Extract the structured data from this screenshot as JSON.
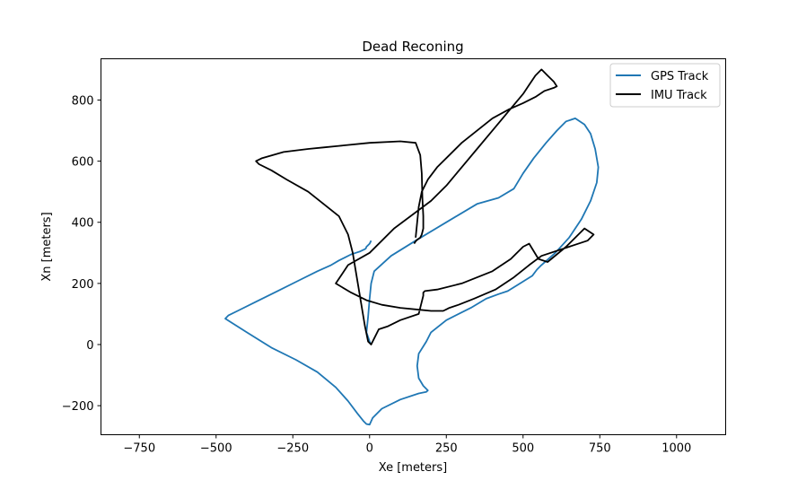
{
  "chart_data": {
    "type": "line",
    "title": "Dead Reconing",
    "xlabel": "Xe [meters]",
    "ylabel": "Xn [meters]",
    "xlim": [
      -875,
      1160
    ],
    "ylim": [
      -295,
      935
    ],
    "xticks": [
      -750,
      -500,
      -250,
      0,
      250,
      500,
      750,
      1000
    ],
    "xtick_labels": [
      "−750",
      "−500",
      "−250",
      "0",
      "250",
      "500",
      "750",
      "1000"
    ],
    "yticks": [
      -200,
      0,
      200,
      400,
      600,
      800
    ],
    "ytick_labels": [
      "−200",
      "0",
      "200",
      "400",
      "600",
      "800"
    ],
    "grid": false,
    "legend_position": "top-right",
    "series": [
      {
        "name": "GPS Track",
        "color": "#1f77b4",
        "x": [
          0,
          -10,
          -20,
          -40,
          -70,
          -115,
          -170,
          -240,
          -310,
          -390,
          -470,
          -465,
          -450,
          -420,
          -370,
          -310,
          -250,
          -190,
          -140,
          -100,
          -80,
          -60,
          -40,
          -28,
          -18,
          -12,
          -10,
          -5,
          0,
          -3,
          -8,
          -5,
          60,
          150,
          260,
          360,
          455,
          550,
          610,
          560,
          580,
          640,
          700,
          745,
          740,
          690,
          600,
          545,
          450,
          350,
          250,
          130,
          90,
          60,
          0,
          -20,
          -20,
          -12,
          -30,
          -50,
          -70,
          -95,
          -130,
          -220,
          -310,
          -400,
          -470,
          -400,
          -320,
          -240,
          -180,
          -150,
          -120,
          -90,
          -75,
          -65,
          -55,
          -40,
          -20,
          -5,
          0,
          5,
          10,
          20,
          40,
          80,
          140,
          175,
          190,
          170,
          150,
          170,
          200,
          260,
          350,
          420,
          460,
          500,
          545,
          560,
          620,
          700,
          745,
          730,
          650,
          580,
          570,
          590,
          650,
          720
        ],
        "y": [
          -265,
          -255,
          -235,
          -195,
          -155,
          -110,
          -70,
          -30,
          10,
          50,
          85,
          90,
          95,
          110,
          140,
          170,
          195,
          215,
          240,
          260,
          270,
          285,
          295,
          300,
          305,
          310,
          315,
          320,
          325,
          330,
          340,
          345,
          360,
          390,
          440,
          520,
          600,
          690,
          740,
          790,
          790,
          730,
          560,
          240,
          230,
          260,
          330,
          290,
          200,
          140,
          90,
          70,
          60,
          50,
          -20,
          -200,
          -230,
          -245,
          -240,
          -230,
          -225,
          -220,
          -215,
          -205,
          -185,
          -160,
          -145,
          -150,
          -158,
          -165,
          -168,
          -162,
          -150,
          -140,
          -128,
          -110,
          -90,
          -60,
          -30,
          -10,
          0,
          10,
          30,
          55,
          80,
          60,
          20,
          0,
          -40,
          -70,
          -80,
          -95,
          -100,
          -105,
          -115,
          -125,
          -135,
          -145,
          -160,
          -175,
          -190,
          -210,
          -220,
          -230,
          -235,
          -240,
          -240,
          -235,
          -230,
          -225
        ],
        "x_plot": [
          5,
          0,
          -10,
          -5,
          0,
          5,
          15,
          70,
          150,
          250,
          350,
          420,
          470,
          500,
          535,
          575,
          610,
          640,
          670,
          700,
          720,
          735,
          745,
          740,
          720,
          690,
          650,
          605,
          560,
          545,
          530,
          490,
          450,
          420,
          380,
          330,
          250,
          200,
          185,
          160,
          155,
          160,
          175,
          190,
          185,
          160,
          100,
          40,
          10,
          0,
          -10,
          -20,
          -40,
          -70,
          -110,
          -170,
          -240,
          -320,
          -400,
          -470,
          -460,
          -430,
          -370,
          -300,
          -230,
          -170,
          -125,
          -100,
          -80,
          -60,
          -45,
          -30,
          -20,
          -15,
          -12,
          -10,
          -5,
          0,
          5
        ],
        "y_plot": [
          0,
          10,
          40,
          90,
          150,
          200,
          240,
          290,
          340,
          400,
          460,
          480,
          510,
          560,
          610,
          660,
          700,
          730,
          740,
          720,
          690,
          640,
          580,
          530,
          470,
          410,
          350,
          300,
          260,
          245,
          225,
          200,
          175,
          165,
          150,
          120,
          80,
          40,
          10,
          -30,
          -70,
          -110,
          -135,
          -150,
          -155,
          -160,
          -180,
          -210,
          -240,
          -262,
          -260,
          -250,
          -225,
          -185,
          -140,
          -90,
          -50,
          -10,
          40,
          85,
          95,
          110,
          140,
          175,
          210,
          240,
          260,
          275,
          285,
          295,
          300,
          305,
          310,
          312,
          315,
          320,
          325,
          330,
          340
        ]
      },
      {
        "name": "IMU Track",
        "color": "#000000",
        "x": [
          145,
          148,
          152,
          158,
          165,
          170,
          175,
          175,
          172,
          170,
          165,
          150,
          100,
          0,
          -100,
          -150,
          -200,
          -280,
          -350,
          -370,
          -360,
          -320,
          -270,
          -200,
          -150,
          -100,
          -70,
          -55,
          -45,
          -35,
          -25,
          -15,
          -5,
          5,
          15,
          30,
          60,
          100,
          160,
          170,
          175,
          175,
          180,
          220,
          300,
          400,
          460,
          500,
          520,
          550,
          580,
          640,
          700,
          730,
          710,
          650,
          560,
          520,
          470,
          410,
          340,
          290,
          260,
          250,
          240,
          200,
          150,
          100,
          40,
          -10,
          -60,
          -110,
          -70,
          0,
          80,
          160,
          200,
          250,
          300,
          350,
          400,
          450,
          500,
          520,
          540,
          560,
          580,
          600,
          610,
          600,
          570,
          540,
          500,
          455,
          400,
          350,
          300,
          260,
          220,
          190,
          170,
          160,
          155,
          150
        ],
        "y": [
          330,
          335,
          340,
          345,
          350,
          360,
          380,
          420,
          480,
          560,
          620,
          660,
          665,
          660,
          650,
          645,
          640,
          630,
          610,
          600,
          590,
          570,
          540,
          500,
          460,
          420,
          360,
          300,
          240,
          180,
          120,
          60,
          10,
          0,
          20,
          50,
          60,
          80,
          100,
          140,
          160,
          170,
          175,
          180,
          200,
          240,
          280,
          320,
          330,
          280,
          270,
          320,
          380,
          360,
          340,
          320,
          290,
          260,
          220,
          180,
          150,
          130,
          120,
          115,
          110,
          110,
          115,
          120,
          130,
          145,
          170,
          200,
          260,
          300,
          380,
          440,
          470,
          520,
          580,
          640,
          700,
          760,
          820,
          850,
          880,
          900,
          880,
          860,
          845,
          840,
          830,
          810,
          790,
          770,
          740,
          700,
          660,
          620,
          580,
          540,
          500,
          450,
          400,
          350
        ]
      }
    ]
  }
}
